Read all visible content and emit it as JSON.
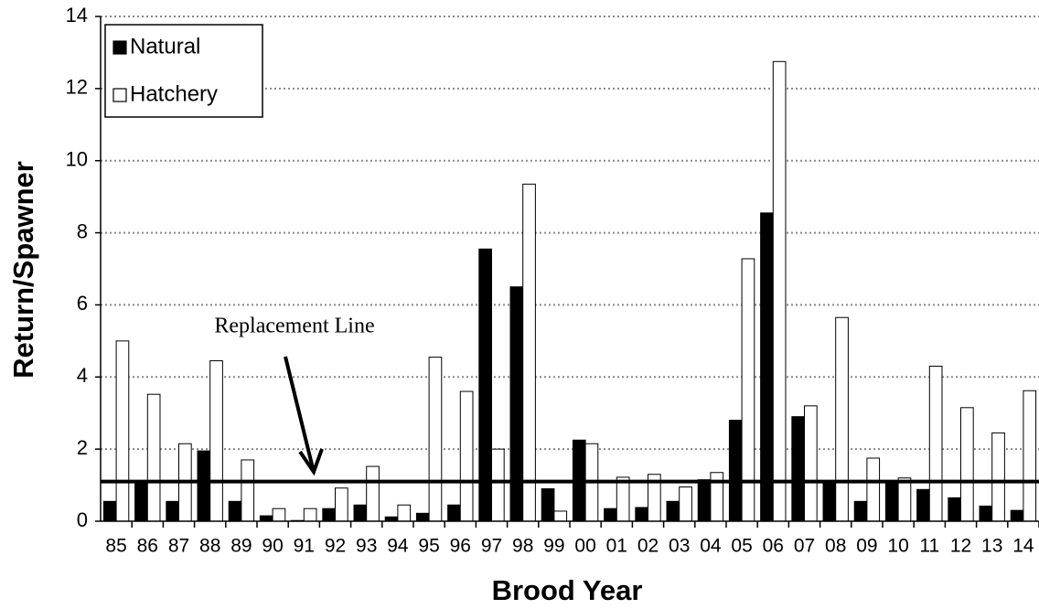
{
  "chart_data": {
    "type": "bar",
    "xlabel": "Brood Year",
    "ylabel": "Return/Spawner",
    "categories": [
      "85",
      "86",
      "87",
      "88",
      "89",
      "90",
      "91",
      "92",
      "93",
      "94",
      "95",
      "96",
      "97",
      "98",
      "99",
      "00",
      "01",
      "02",
      "03",
      "04",
      "05",
      "06",
      "07",
      "08",
      "09",
      "10",
      "11",
      "12",
      "13",
      "14"
    ],
    "series": [
      {
        "name": "Natural",
        "color": "#000000",
        "values": [
          0.55,
          1.1,
          0.55,
          1.95,
          0.55,
          0.15,
          0.02,
          0.35,
          0.45,
          0.12,
          0.22,
          0.45,
          7.55,
          6.5,
          0.9,
          2.25,
          0.35,
          0.38,
          0.55,
          1.15,
          2.8,
          8.55,
          2.9,
          1.1,
          0.55,
          1.05,
          0.88,
          0.65,
          0.42,
          0.3
        ]
      },
      {
        "name": "Hatchery",
        "color": "#ffffff",
        "values": [
          5.0,
          3.52,
          2.15,
          4.45,
          1.7,
          0.35,
          0.35,
          0.92,
          1.52,
          0.45,
          4.55,
          3.6,
          2.0,
          9.35,
          0.28,
          2.15,
          1.22,
          1.3,
          0.95,
          1.35,
          7.28,
          12.75,
          3.2,
          5.65,
          1.75,
          1.2,
          4.3,
          3.15,
          2.45,
          3.62
        ]
      }
    ],
    "ylim": [
      0,
      14
    ],
    "yticks": [
      0,
      2,
      4,
      6,
      8,
      10,
      12,
      14
    ],
    "grid": true,
    "legend": "upper left",
    "replacement_line": 1.1,
    "annotation": "Replacement Line"
  }
}
